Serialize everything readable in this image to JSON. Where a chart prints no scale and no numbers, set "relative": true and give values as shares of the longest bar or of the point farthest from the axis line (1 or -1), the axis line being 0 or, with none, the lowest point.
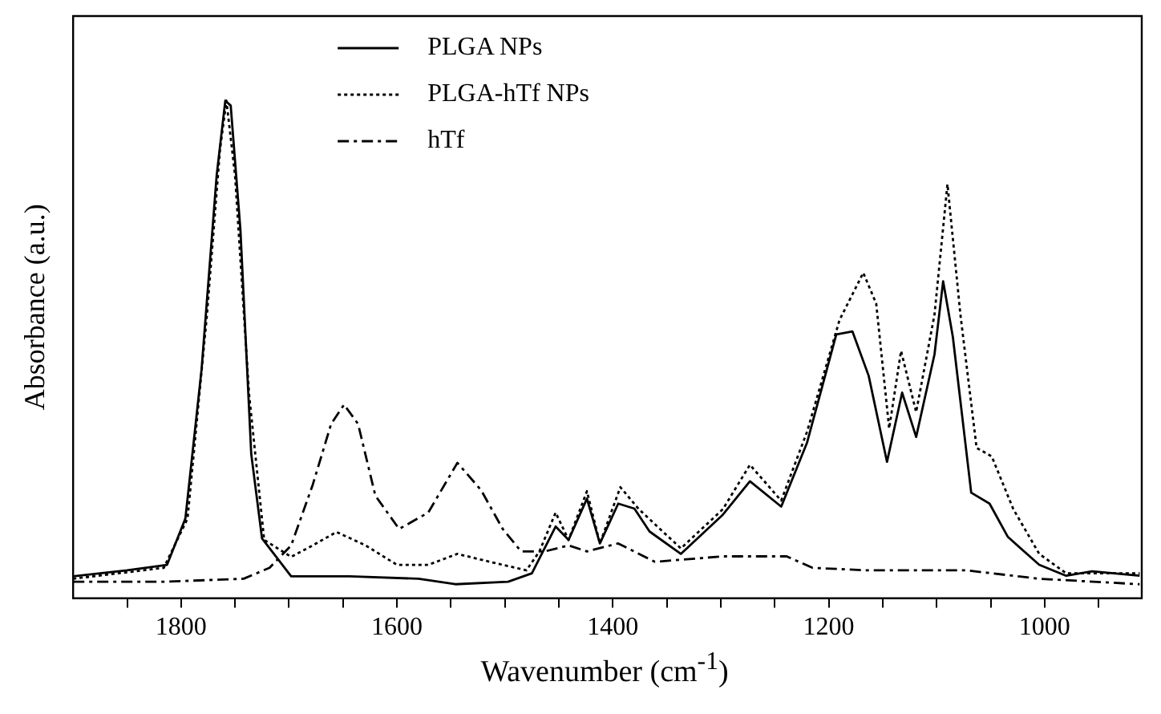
{
  "chart_data": {
    "type": "line",
    "xlabel": "Wavenumber (cm$^{-1}$)",
    "ylabel": "Absorbance (a.u.)",
    "relative": true,
    "xlim": [
      1900,
      910
    ],
    "xticks": [
      {
        "value": 1850,
        "label": null
      },
      1800,
      {
        "value": 1750,
        "label": null
      },
      {
        "value": 1700,
        "label": null
      },
      {
        "value": 1650,
        "label": null
      },
      1600,
      {
        "value": 1550,
        "label": null
      },
      {
        "value": 1500,
        "label": null
      },
      {
        "value": 1450,
        "label": null
      },
      1400,
      {
        "value": 1350,
        "label": null
      },
      {
        "value": 1300,
        "label": null
      },
      {
        "value": 1250,
        "label": null
      },
      1200,
      {
        "value": 1150,
        "label": null
      },
      {
        "value": 1100,
        "label": null
      },
      {
        "value": 1050,
        "label": null
      },
      1000,
      {
        "value": 950,
        "label": null
      }
    ],
    "tick_labels": "x",
    "grid": false,
    "legend": "top left",
    "marker": "none",
    "series": [
      {
        "name": "PLGA NPs",
        "color": "#000000",
        "line_style": "solid",
        "x": [
          1900,
          1850,
          1813,
          1796,
          1781,
          1767,
          1759,
          1754,
          1745,
          1735,
          1725,
          1698,
          1644,
          1580,
          1546,
          1497,
          1475,
          1453,
          1441,
          1424,
          1412,
          1395,
          1380,
          1366,
          1337,
          1298,
          1273,
          1244,
          1220,
          1193,
          1178,
          1163,
          1146,
          1132,
          1119,
          1102,
          1094,
          1085,
          1068,
          1051,
          1034,
          1005,
          980,
          956,
          912
        ],
        "values": [
          0.044,
          0.056,
          0.067,
          0.16,
          0.46,
          0.85,
          1.0,
          0.99,
          0.74,
          0.29,
          0.12,
          0.044,
          0.044,
          0.039,
          0.028,
          0.033,
          0.05,
          0.144,
          0.117,
          0.2,
          0.11,
          0.19,
          0.18,
          0.134,
          0.089,
          0.168,
          0.235,
          0.184,
          0.313,
          0.53,
          0.536,
          0.447,
          0.274,
          0.413,
          0.324,
          0.49,
          0.637,
          0.525,
          0.212,
          0.19,
          0.123,
          0.067,
          0.045,
          0.054,
          0.045
        ]
      },
      {
        "name": "PLGA-hTf NPs",
        "color": "#000000",
        "line_style": "dotted",
        "x": [
          1900,
          1816,
          1794,
          1776,
          1764,
          1758,
          1750,
          1737,
          1723,
          1698,
          1678,
          1656,
          1629,
          1600,
          1571,
          1544,
          1512,
          1480,
          1468,
          1453,
          1441,
          1424,
          1412,
          1393,
          1376,
          1337,
          1298,
          1273,
          1244,
          1220,
          1190,
          1168,
          1156,
          1144,
          1133,
          1119,
          1102,
          1090,
          1078,
          1063,
          1049,
          1029,
          1005,
          980,
          912
        ],
        "values": [
          0.039,
          0.061,
          0.16,
          0.57,
          0.9,
          1.0,
          0.85,
          0.41,
          0.117,
          0.083,
          0.106,
          0.133,
          0.106,
          0.067,
          0.067,
          0.089,
          0.072,
          0.056,
          0.094,
          0.172,
          0.117,
          0.215,
          0.11,
          0.223,
          0.179,
          0.1,
          0.179,
          0.268,
          0.196,
          0.335,
          0.559,
          0.654,
          0.592,
          0.341,
          0.497,
          0.374,
          0.57,
          0.832,
          0.57,
          0.302,
          0.285,
          0.179,
          0.089,
          0.05,
          0.05
        ]
      },
      {
        "name": "hTf",
        "color": "#000000",
        "line_style": "dashed",
        "x": [
          1900,
          1816,
          1742,
          1718,
          1698,
          1678,
          1661,
          1649,
          1636,
          1620,
          1598,
          1571,
          1544,
          1522,
          1502,
          1485,
          1463,
          1441,
          1424,
          1395,
          1361,
          1298,
          1239,
          1215,
          1166,
          1073,
          1005,
          912
        ],
        "values": [
          0.033,
          0.033,
          0.039,
          0.061,
          0.106,
          0.228,
          0.35,
          0.389,
          0.35,
          0.206,
          0.139,
          0.172,
          0.272,
          0.217,
          0.139,
          0.094,
          0.094,
          0.106,
          0.094,
          0.11,
          0.073,
          0.084,
          0.084,
          0.061,
          0.056,
          0.056,
          0.039,
          0.028
        ]
      }
    ]
  }
}
